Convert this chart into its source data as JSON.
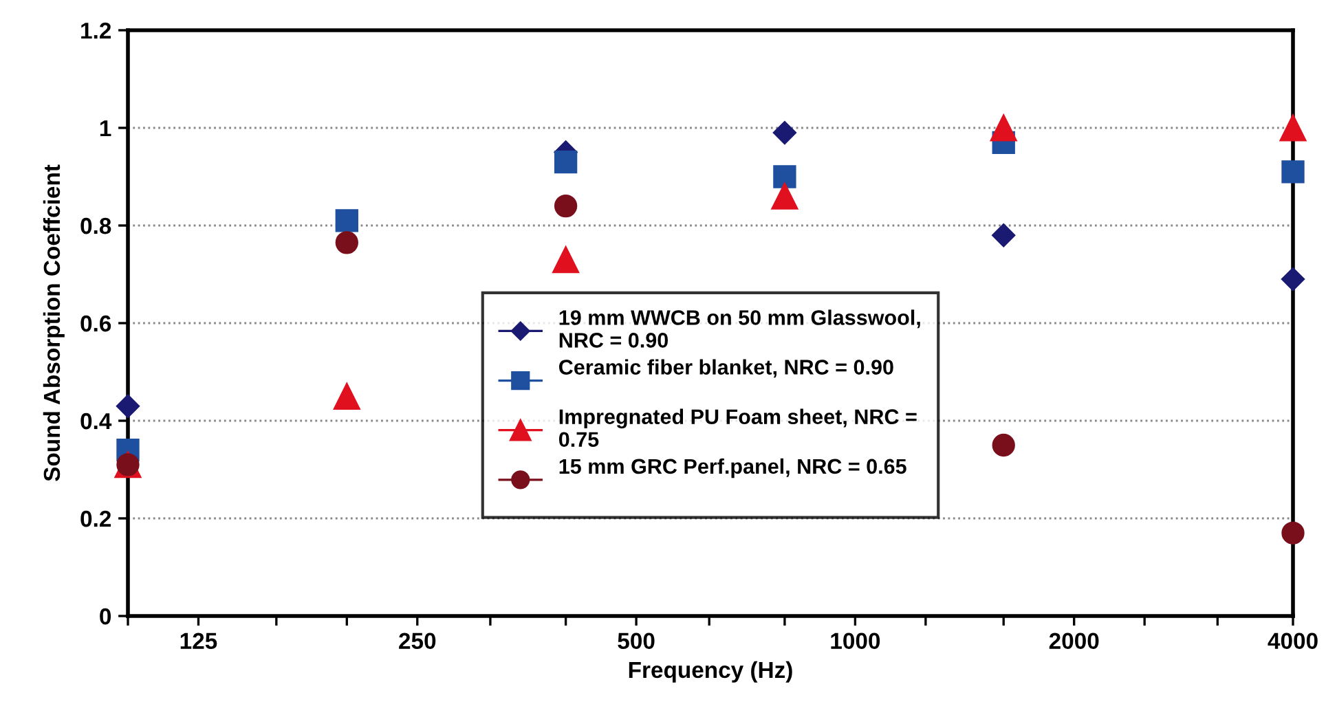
{
  "chart_data": {
    "type": "scatter",
    "xlabel": "Frequency (Hz)",
    "ylabel": "Sound Absorption Coeffcient",
    "log": "x",
    "x": [
      100,
      200,
      400,
      800,
      1600,
      4000
    ],
    "series": [
      {
        "name": "19 mm WWCB on 50 mm Glasswool,\nNRC = 0.90",
        "color": "#1a1a72",
        "marker": "diamond",
        "values": [
          0.43,
          null,
          0.95,
          0.99,
          0.78,
          0.69
        ]
      },
      {
        "name": "Ceramic fiber blanket, NRC = 0.90\n ",
        "color": "#1f4f9f",
        "marker": "square",
        "values": [
          0.34,
          0.81,
          0.93,
          0.9,
          0.97,
          0.91
        ]
      },
      {
        "name": "Impregnated PU Foam sheet, NRC =\n0.75",
        "color": "#e0101e",
        "marker": "triangle",
        "values": [
          0.31,
          0.45,
          0.73,
          0.86,
          1.0,
          1.0
        ]
      },
      {
        "name": "15 mm GRC Perf.panel, NRC = 0.65\n ",
        "color": "#7a0f1c",
        "marker": "circle",
        "values": [
          0.31,
          0.765,
          0.84,
          null,
          0.35,
          0.17
        ]
      }
    ],
    "xlim": [
      100,
      4000
    ],
    "xticks": [
      {
        "value": 100,
        "label": null
      },
      125,
      {
        "value": 160,
        "label": null
      },
      {
        "value": 200,
        "label": null
      },
      250,
      {
        "value": 315,
        "label": null
      },
      {
        "value": 400,
        "label": null
      },
      500,
      {
        "value": 630,
        "label": null
      },
      {
        "value": 800,
        "label": null
      },
      1000,
      {
        "value": 1250,
        "label": null
      },
      {
        "value": 1600,
        "label": null
      },
      2000,
      {
        "value": 2500,
        "label": null
      },
      {
        "value": 3150,
        "label": null
      },
      4000
    ],
    "ylim": [
      0,
      1.2
    ],
    "yticks": [
      0,
      0.2,
      0.4,
      0.6,
      0.8,
      1,
      1.2
    ],
    "grid": "y",
    "legend": "center"
  }
}
